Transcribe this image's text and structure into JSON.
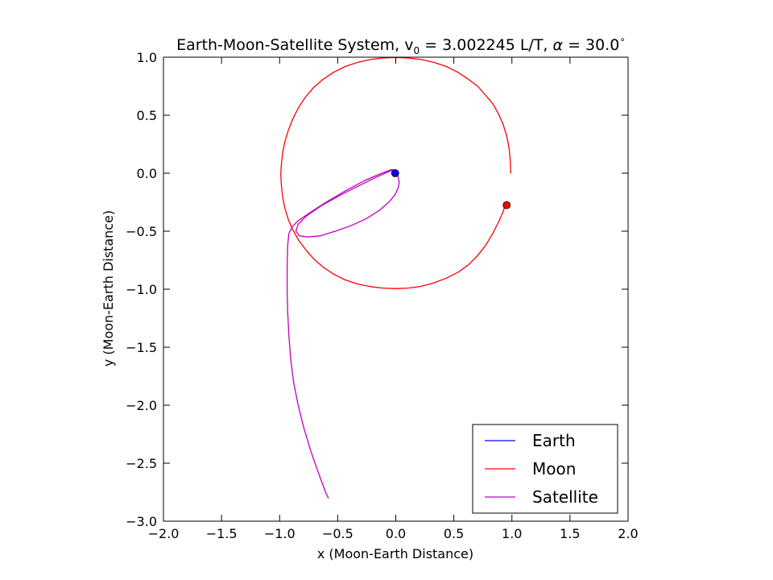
{
  "chart_data": {
    "type": "line",
    "title_parts": {
      "prefix": "Earth-Moon-Satellite System, v",
      "subscript": "0",
      "middle": " = 3.002245 L/T, ",
      "alpha": "α",
      "suffix": " = 30.0",
      "degree": "∘"
    },
    "xlabel": "x (Moon-Earth Distance)",
    "ylabel": "y (Moon-Earth Distance)",
    "xlim": [
      -2.0,
      2.0
    ],
    "ylim": [
      -3.0,
      1.0
    ],
    "xticks": [
      -2.0,
      -1.5,
      -1.0,
      -0.5,
      0.0,
      0.5,
      1.0,
      1.5,
      2.0
    ],
    "yticks": [
      -3.0,
      -2.5,
      -2.0,
      -1.5,
      -1.0,
      -0.5,
      0.0,
      0.5,
      1.0
    ],
    "xtick_labels": [
      "−2.0",
      "−1.5",
      "−1.0",
      "−0.5",
      "0.0",
      "0.5",
      "1.0",
      "1.5",
      "2.0"
    ],
    "ytick_labels": [
      "−3.0",
      "−2.5",
      "−2.0",
      "−1.5",
      "−1.0",
      "−0.5",
      "0.0",
      "0.5",
      "1.0"
    ],
    "grid": false,
    "legend_position": "lower-right",
    "series": [
      {
        "name": "Earth",
        "color": "#0000ff",
        "x": [
          0.0
        ],
        "y": [
          0.0
        ],
        "marker": {
          "x": -0.005,
          "y": 0.0
        }
      },
      {
        "name": "Moon",
        "color": "#ff0000",
        "x": [
          0.99,
          0.985,
          0.975,
          0.955,
          0.925,
          0.885,
          0.835,
          0.775,
          0.705,
          0.625,
          0.535,
          0.435,
          0.33,
          0.22,
          0.105,
          0.0,
          -0.11,
          -0.22,
          -0.33,
          -0.435,
          -0.535,
          -0.625,
          -0.705,
          -0.775,
          -0.835,
          -0.885,
          -0.925,
          -0.955,
          -0.975,
          -0.985,
          -0.99,
          -0.985,
          -0.975,
          -0.955,
          -0.925,
          -0.885,
          -0.835,
          -0.775,
          -0.705,
          -0.625,
          -0.535,
          -0.435,
          -0.33,
          -0.22,
          -0.11,
          0.0,
          0.11,
          0.22,
          0.33,
          0.435,
          0.535,
          0.625,
          0.705,
          0.775,
          0.835,
          0.885,
          0.925,
          0.945
        ],
        "y": [
          0.0,
          0.12,
          0.22,
          0.32,
          0.42,
          0.51,
          0.6,
          0.67,
          0.75,
          0.81,
          0.87,
          0.92,
          0.955,
          0.98,
          0.993,
          0.998,
          0.993,
          0.98,
          0.955,
          0.92,
          0.87,
          0.81,
          0.74,
          0.66,
          0.57,
          0.47,
          0.37,
          0.27,
          0.17,
          0.07,
          -0.01,
          -0.1,
          -0.2,
          -0.3,
          -0.4,
          -0.49,
          -0.58,
          -0.66,
          -0.74,
          -0.81,
          -0.87,
          -0.92,
          -0.955,
          -0.978,
          -0.99,
          -0.995,
          -0.99,
          -0.975,
          -0.945,
          -0.905,
          -0.855,
          -0.79,
          -0.71,
          -0.62,
          -0.52,
          -0.42,
          -0.33,
          -0.27
        ],
        "marker": {
          "x": 0.955,
          "y": -0.275
        }
      },
      {
        "name": "Satellite",
        "color": "#bf00bf",
        "x": [
          0.0,
          0.02,
          0.03,
          0.02,
          -0.01,
          -0.06,
          -0.14,
          -0.25,
          -0.38,
          -0.52,
          -0.65,
          -0.76,
          -0.83,
          -0.86,
          -0.84,
          -0.77,
          -0.64,
          -0.48,
          -0.32,
          -0.18,
          -0.07,
          -0.02,
          -0.04,
          -0.12,
          -0.26,
          -0.43,
          -0.6,
          -0.74,
          -0.84,
          -0.89,
          -0.92,
          -0.93,
          -0.935,
          -0.935,
          -0.93,
          -0.92,
          -0.905,
          -0.88,
          -0.84,
          -0.79,
          -0.73,
          -0.66,
          -0.6,
          -0.58
        ],
        "y": [
          0.0,
          -0.03,
          -0.08,
          -0.13,
          -0.19,
          -0.25,
          -0.32,
          -0.39,
          -0.45,
          -0.5,
          -0.54,
          -0.55,
          -0.54,
          -0.5,
          -0.44,
          -0.37,
          -0.28,
          -0.19,
          -0.11,
          -0.04,
          0.01,
          0.03,
          0.03,
          0.0,
          -0.06,
          -0.15,
          -0.25,
          -0.34,
          -0.41,
          -0.46,
          -0.52,
          -0.62,
          -0.8,
          -1.0,
          -1.2,
          -1.4,
          -1.6,
          -1.8,
          -2.0,
          -2.2,
          -2.4,
          -2.6,
          -2.76,
          -2.8
        ]
      }
    ]
  }
}
